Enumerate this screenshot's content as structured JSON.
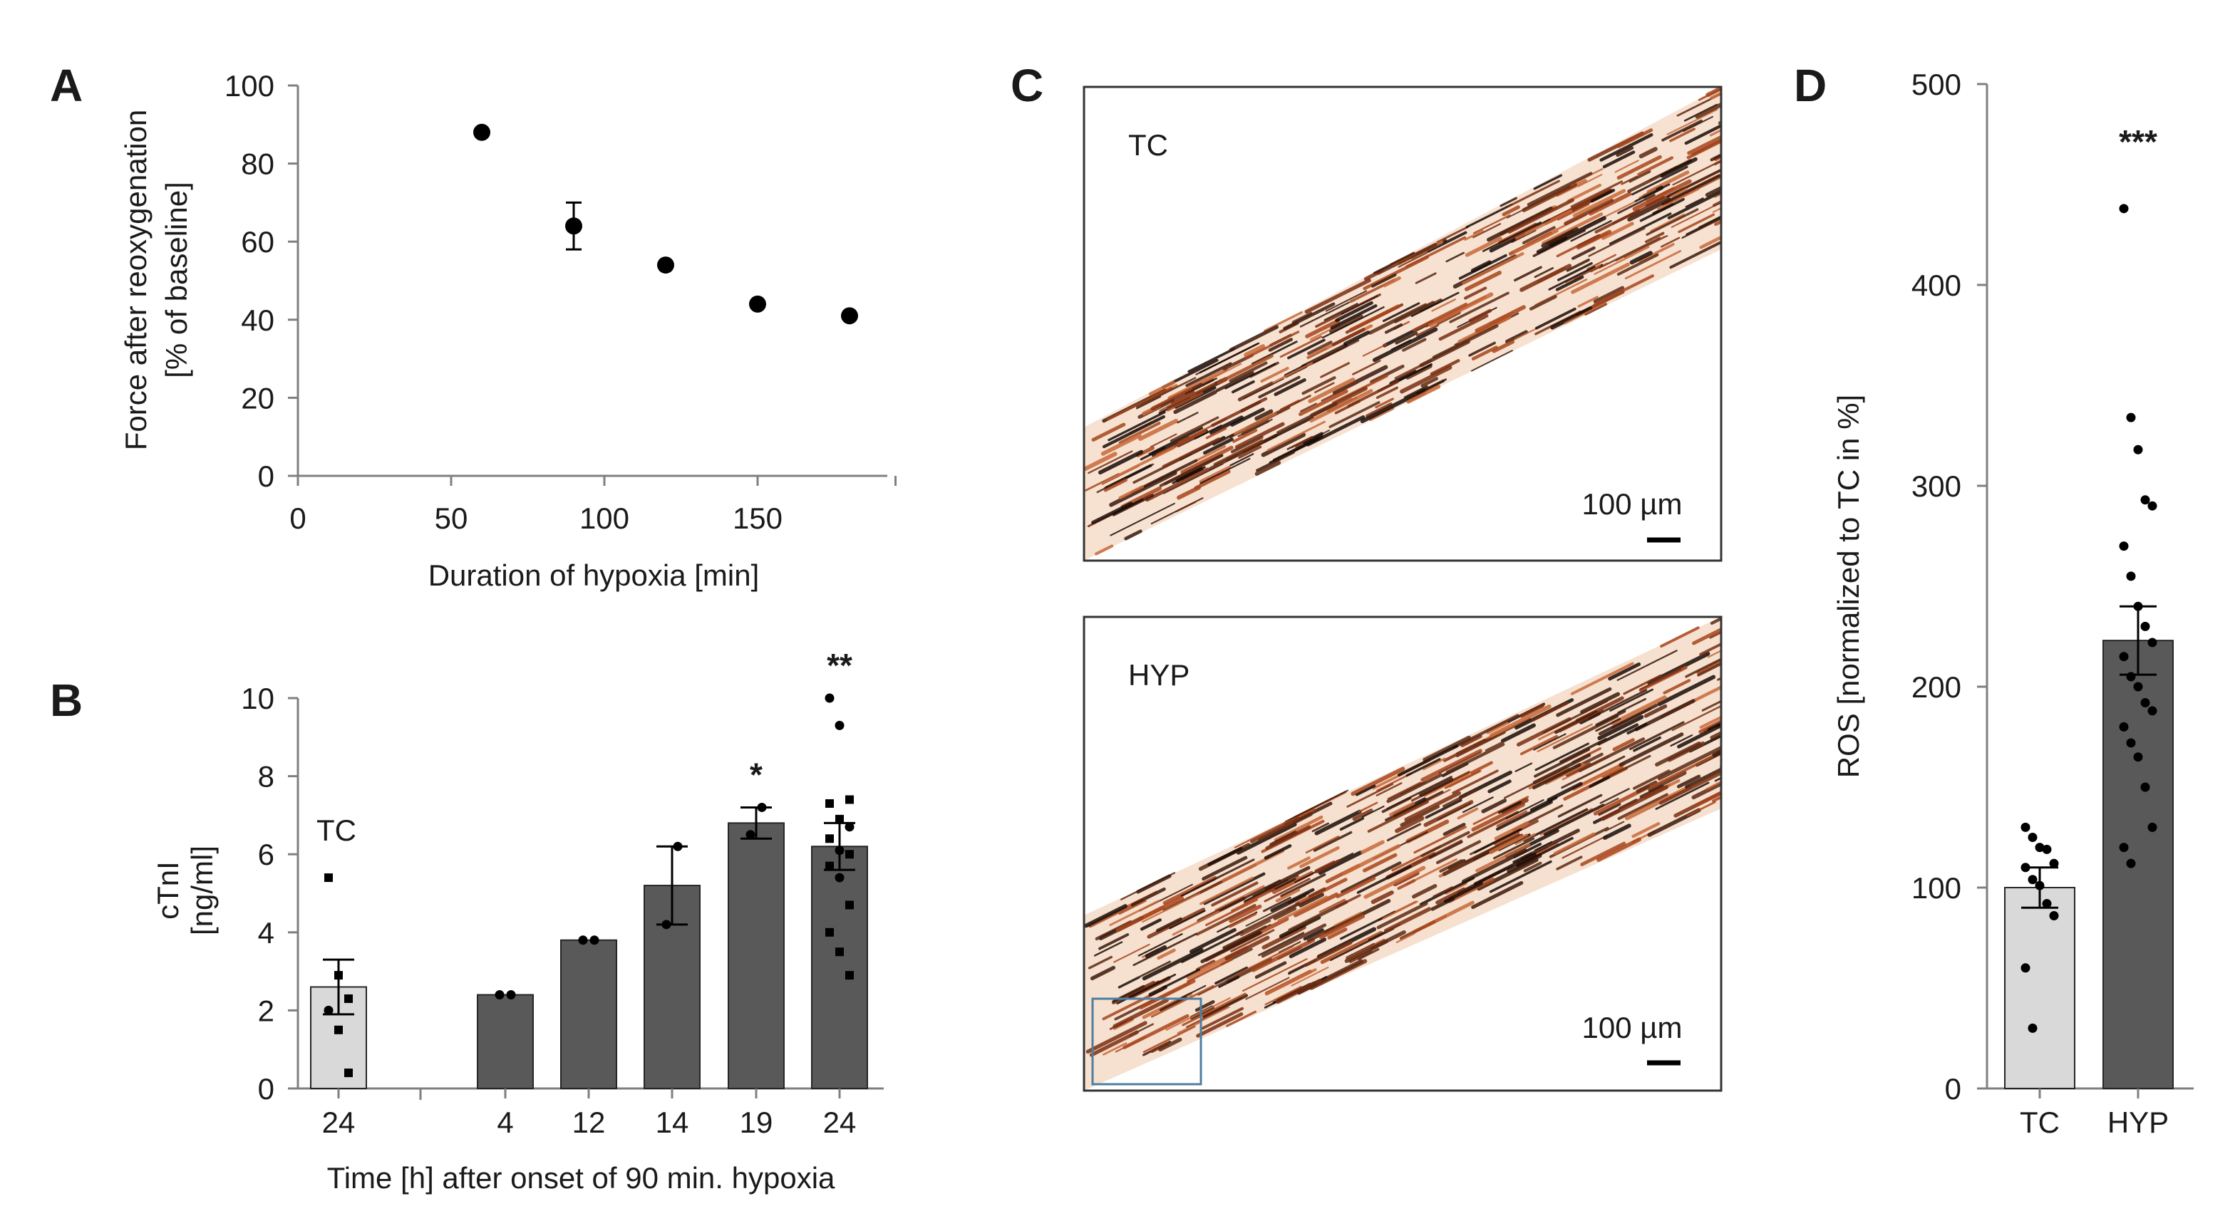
{
  "figure": {
    "panels": [
      "A",
      "B",
      "C",
      "D"
    ]
  },
  "chart_data": [
    {
      "id": "A",
      "type": "scatter",
      "title": "",
      "xlabel": "Duration of hypoxia [min]",
      "ylabel_lines": [
        "Force after reoxygenation",
        "[% of baseline]"
      ],
      "xlim": [
        0,
        195
      ],
      "ylim": [
        0,
        100
      ],
      "xticks": [
        "0",
        "50",
        "100",
        "150"
      ],
      "yticks": [
        "0",
        "20",
        "40",
        "60",
        "80",
        "100"
      ],
      "points": [
        {
          "x": 60,
          "y": 88,
          "err": 0
        },
        {
          "x": 90,
          "y": 64,
          "err": 6
        },
        {
          "x": 120,
          "y": 54,
          "err": 0
        },
        {
          "x": 150,
          "y": 44,
          "err": 0
        },
        {
          "x": 180,
          "y": 41,
          "err": 0
        }
      ],
      "grid": false
    },
    {
      "id": "B",
      "type": "bar",
      "xlabel": "Time [h] after onset of 90 min. hypoxia",
      "ylabel_lines": [
        "cTnI",
        "[ng/ml]"
      ],
      "ylim": [
        0,
        10
      ],
      "yticks": [
        "0",
        "2",
        "4",
        "6",
        "8",
        "10"
      ],
      "control_label": "TC",
      "bars": [
        {
          "category": "24",
          "value": 2.6,
          "err": 0.7,
          "color": "#d9d9d9",
          "group": "TC",
          "stars": "",
          "points": [
            5.4,
            2.9,
            2.3,
            2.0,
            1.5,
            0.4
          ],
          "markers": [
            "s",
            "s",
            "s",
            "o",
            "s",
            "s"
          ]
        },
        {
          "category": "4",
          "value": 2.4,
          "err": 0.0,
          "color": "#595959",
          "group": "HYP",
          "stars": "",
          "points": [
            2.4,
            2.4
          ],
          "markers": [
            "o",
            "o"
          ]
        },
        {
          "category": "12",
          "value": 3.8,
          "err": 0.0,
          "color": "#595959",
          "group": "HYP",
          "stars": "",
          "points": [
            3.8,
            3.8
          ],
          "markers": [
            "o",
            "o"
          ]
        },
        {
          "category": "14",
          "value": 5.2,
          "err": 1.0,
          "color": "#595959",
          "group": "HYP",
          "stars": "",
          "points": [
            6.2,
            4.2
          ],
          "markers": [
            "o",
            "o"
          ]
        },
        {
          "category": "19",
          "value": 6.8,
          "err": 0.4,
          "color": "#595959",
          "group": "HYP",
          "stars": "*",
          "points": [
            7.2,
            6.5
          ],
          "markers": [
            "o",
            "o"
          ]
        },
        {
          "category": "24",
          "value": 6.2,
          "err": 0.6,
          "color": "#595959",
          "group": "HYP",
          "stars": "**",
          "points": [
            10.0,
            9.3,
            7.4,
            7.3,
            6.9,
            6.7,
            6.4,
            6.1,
            6.0,
            5.7,
            5.4,
            4.7,
            4.0,
            3.5,
            2.9
          ],
          "markers": [
            "o",
            "o",
            "s",
            "s",
            "s",
            "o",
            "s",
            "o",
            "s",
            "s",
            "o",
            "s",
            "s",
            "s",
            "s"
          ]
        }
      ]
    },
    {
      "id": "D",
      "type": "bar",
      "xlabel": "",
      "ylabel": "ROS [normalized to TC in %]",
      "ylim": [
        0,
        500
      ],
      "yticks": [
        "0",
        "100",
        "200",
        "300",
        "400",
        "500"
      ],
      "bars": [
        {
          "category": "TC",
          "value": 100,
          "err": 10,
          "color": "#d9d9d9",
          "stars": "",
          "points": [
            130,
            125,
            120,
            119,
            112,
            110,
            104,
            101,
            92,
            86,
            60,
            30
          ]
        },
        {
          "category": "HYP",
          "value": 223,
          "err": 17,
          "color": "#595959",
          "stars": "***",
          "points": [
            438,
            334,
            318,
            293,
            290,
            270,
            255,
            240,
            230,
            222,
            215,
            205,
            200,
            192,
            188,
            180,
            172,
            165,
            150,
            130,
            120,
            112
          ]
        }
      ]
    }
  ],
  "micrographs": [
    {
      "id": "C-top",
      "label": "TC",
      "scalebar": "100 µm"
    },
    {
      "id": "C-bottom",
      "label": "HYP",
      "scalebar": "100 µm"
    }
  ]
}
